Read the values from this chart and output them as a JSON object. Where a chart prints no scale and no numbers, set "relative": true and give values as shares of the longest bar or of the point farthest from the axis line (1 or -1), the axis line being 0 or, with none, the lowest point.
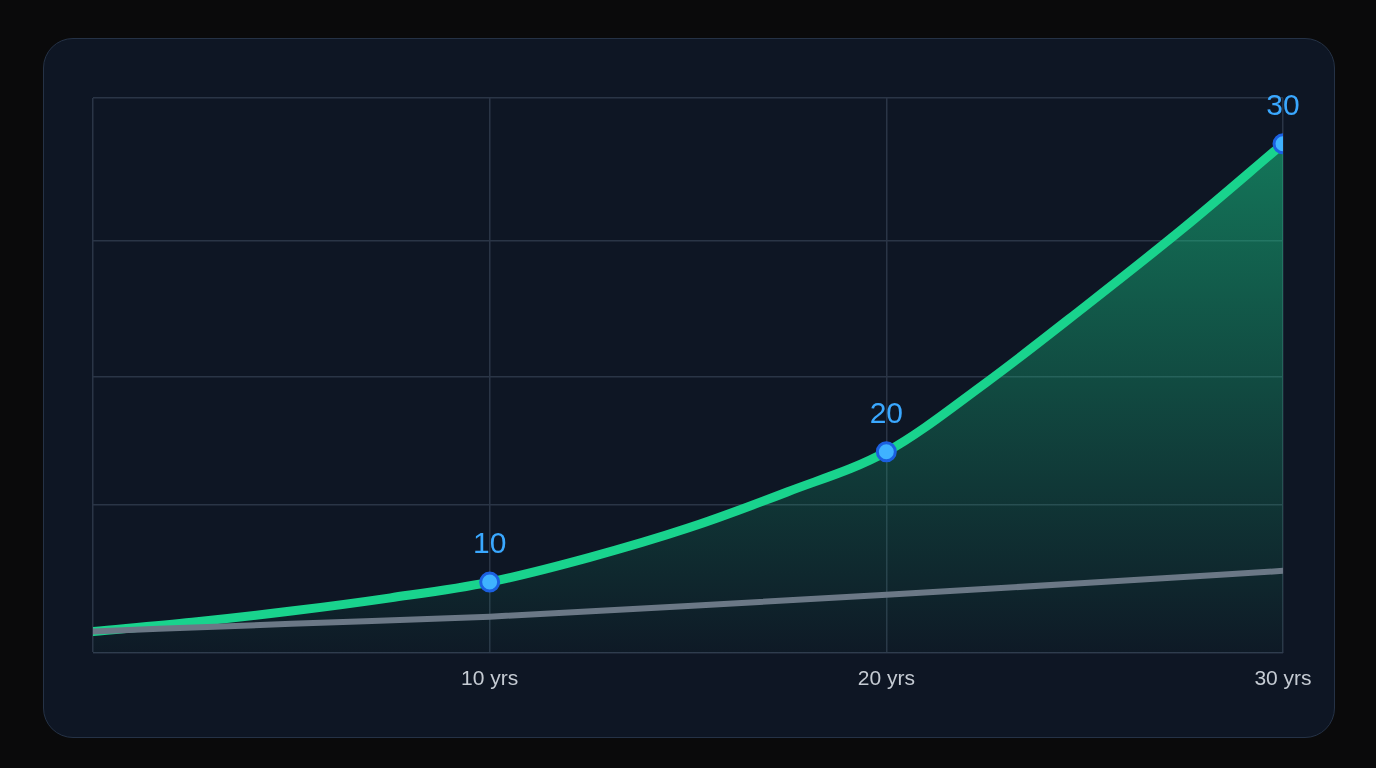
{
  "chart_data": {
    "type": "line",
    "relative": true,
    "xlim": [
      0,
      30
    ],
    "xticks": [
      {
        "value": 0,
        "label": null
      },
      {
        "value": 10,
        "label": "10 yrs"
      },
      {
        "value": 20,
        "label": "20 yrs"
      },
      {
        "value": 30,
        "label": "30 yrs"
      }
    ],
    "series": [
      {
        "type": "area",
        "color": "#19d38d",
        "x": [
          0,
          2.5,
          5,
          7.5,
          10,
          12.5,
          15,
          17.5,
          20,
          22.5,
          25,
          27.5,
          30
        ],
        "values": [
          0.042,
          0.06,
          0.082,
          0.108,
          0.139,
          0.187,
          0.245,
          0.316,
          0.395,
          0.53,
          0.68,
          0.835,
          1
        ]
      },
      {
        "type": "line",
        "color": "#6b7886",
        "x": [
          0,
          5,
          10,
          15,
          20,
          25,
          30
        ],
        "values": [
          0.042,
          0.057,
          0.071,
          0.092,
          0.114,
          0.137,
          0.161
        ]
      },
      {
        "type": "scatter",
        "color": "#3fb2ff",
        "x": [
          10,
          20,
          30
        ],
        "values": [
          0.139,
          0.395,
          1
        ]
      }
    ],
    "grid": true,
    "annotations": [
      {
        "text": "10",
        "x": 10,
        "y": 0.139
      },
      {
        "text": "20",
        "x": 20,
        "y": 0.395
      },
      {
        "text": "30",
        "x": 30,
        "y": 1
      }
    ]
  }
}
